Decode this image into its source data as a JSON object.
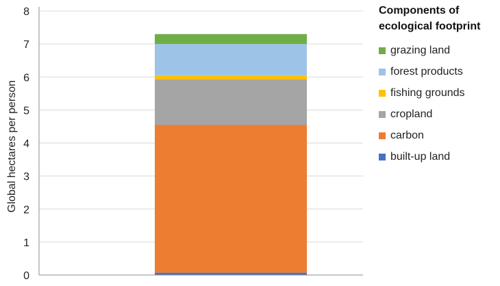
{
  "chart_data": {
    "type": "bar",
    "stacked": true,
    "categories": [
      ""
    ],
    "ylabel": "Global hectares per person",
    "ylim": [
      0,
      8
    ],
    "yticks": [
      0,
      1,
      2,
      3,
      4,
      5,
      6,
      7,
      8
    ],
    "grid": true,
    "legend_title": "Components of\necological footprint",
    "legend_position": "right",
    "series": [
      {
        "name": "built-up land",
        "values": [
          0.07
        ],
        "color": "#4472C4"
      },
      {
        "name": "carbon",
        "values": [
          4.48
        ],
        "color": "#ED7D31"
      },
      {
        "name": "cropland",
        "values": [
          1.38
        ],
        "color": "#A5A5A5"
      },
      {
        "name": "fishing grounds",
        "values": [
          0.12
        ],
        "color": "#FFC000"
      },
      {
        "name": "forest products",
        "values": [
          0.95
        ],
        "color": "#9DC3E6"
      },
      {
        "name": "grazing land",
        "values": [
          0.3
        ],
        "color": "#70AD47"
      }
    ]
  }
}
